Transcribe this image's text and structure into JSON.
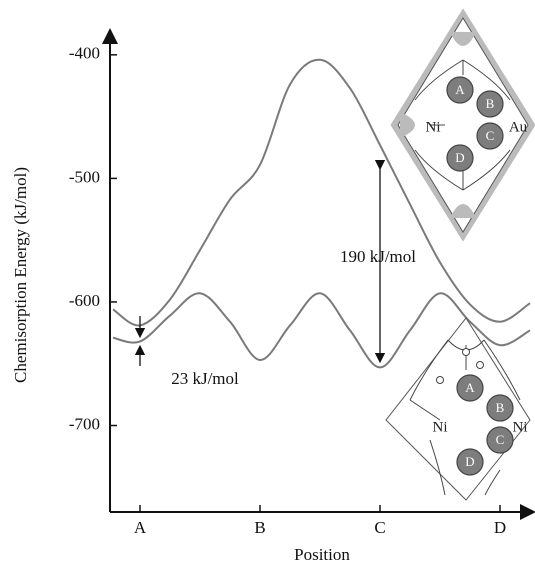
{
  "chart_data": {
    "type": "line",
    "x_label": "Position",
    "y_label": "Chemisorption Energy (kJ/mol)",
    "x": [
      0.775,
      1,
      1.25,
      1.5,
      1.75,
      2,
      2.25,
      2.5,
      2.75,
      3,
      3.25,
      3.5,
      3.75,
      4,
      4.25
    ],
    "series": [
      {
        "color": "#7a7a7a",
        "values": [
          -606,
          -619,
          -598,
          -558,
          -517,
          -489,
          -424,
          -404,
          -427,
          -473,
          -521,
          -568,
          -602,
          -616,
          -601
        ]
      },
      {
        "color": "#7a7a7a",
        "values": [
          -629,
          -632,
          -611,
          -593,
          -616,
          -647,
          -619,
          -593,
          -623,
          -653,
          -623,
          -593,
          -616,
          -635,
          -623
        ]
      }
    ],
    "xlim": [
      0.75,
      4.25
    ],
    "xticks": [
      {
        "value": 1,
        "label": "A"
      },
      {
        "value": 2,
        "label": "B"
      },
      {
        "value": 3,
        "label": "C"
      },
      {
        "value": 4,
        "label": "D"
      }
    ],
    "ylim": [
      -770,
      -388
    ],
    "yticks": [
      -400,
      -500,
      -600,
      -700
    ],
    "annotations": [
      "190 kJ/mol",
      "23 kJ/mol"
    ]
  },
  "insets": [
    {
      "labels": [
        "A",
        "B",
        "C",
        "D",
        "Ni",
        "Au"
      ]
    },
    {
      "labels": [
        "A",
        "B",
        "C",
        "D",
        "Ni",
        "Ni"
      ]
    }
  ]
}
